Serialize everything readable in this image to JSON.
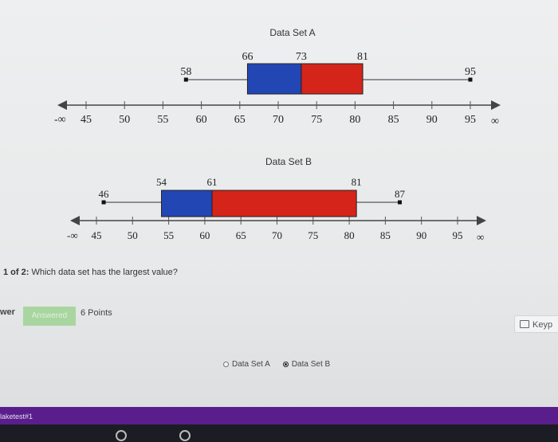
{
  "chart_data": [
    {
      "type": "box",
      "title": "Data Set A",
      "min": 58,
      "q1": 66,
      "median": 73,
      "q3": 81,
      "max": 95,
      "axis_ticks": [
        45,
        50,
        55,
        60,
        65,
        70,
        75,
        80,
        85,
        90,
        95
      ],
      "axis_left_label": "-∞",
      "axis_right_label": "∞",
      "colors": {
        "lower_box": "#2346b5",
        "upper_box": "#d52419"
      }
    },
    {
      "type": "box",
      "title": "Data Set B",
      "min": 46,
      "q1": 54,
      "median": 61,
      "q3": 81,
      "max": 87,
      "axis_ticks": [
        45,
        50,
        55,
        60,
        65,
        70,
        75,
        80,
        85,
        90,
        95
      ],
      "axis_left_label": "-∞",
      "axis_right_label": "∞",
      "colors": {
        "lower_box": "#2346b5",
        "upper_box": "#d52419"
      }
    }
  ],
  "question": {
    "prefix": "1 of 2:",
    "text": "Which data set has the largest value?"
  },
  "answer_label": "wer",
  "status_badge": "Answered",
  "points": "6 Points",
  "keypad_label": "Keyp",
  "options": [
    {
      "label": "Data Set A",
      "selected": false
    },
    {
      "label": "Data Set B",
      "selected": true
    }
  ],
  "taskbar_label": "laketest#1"
}
